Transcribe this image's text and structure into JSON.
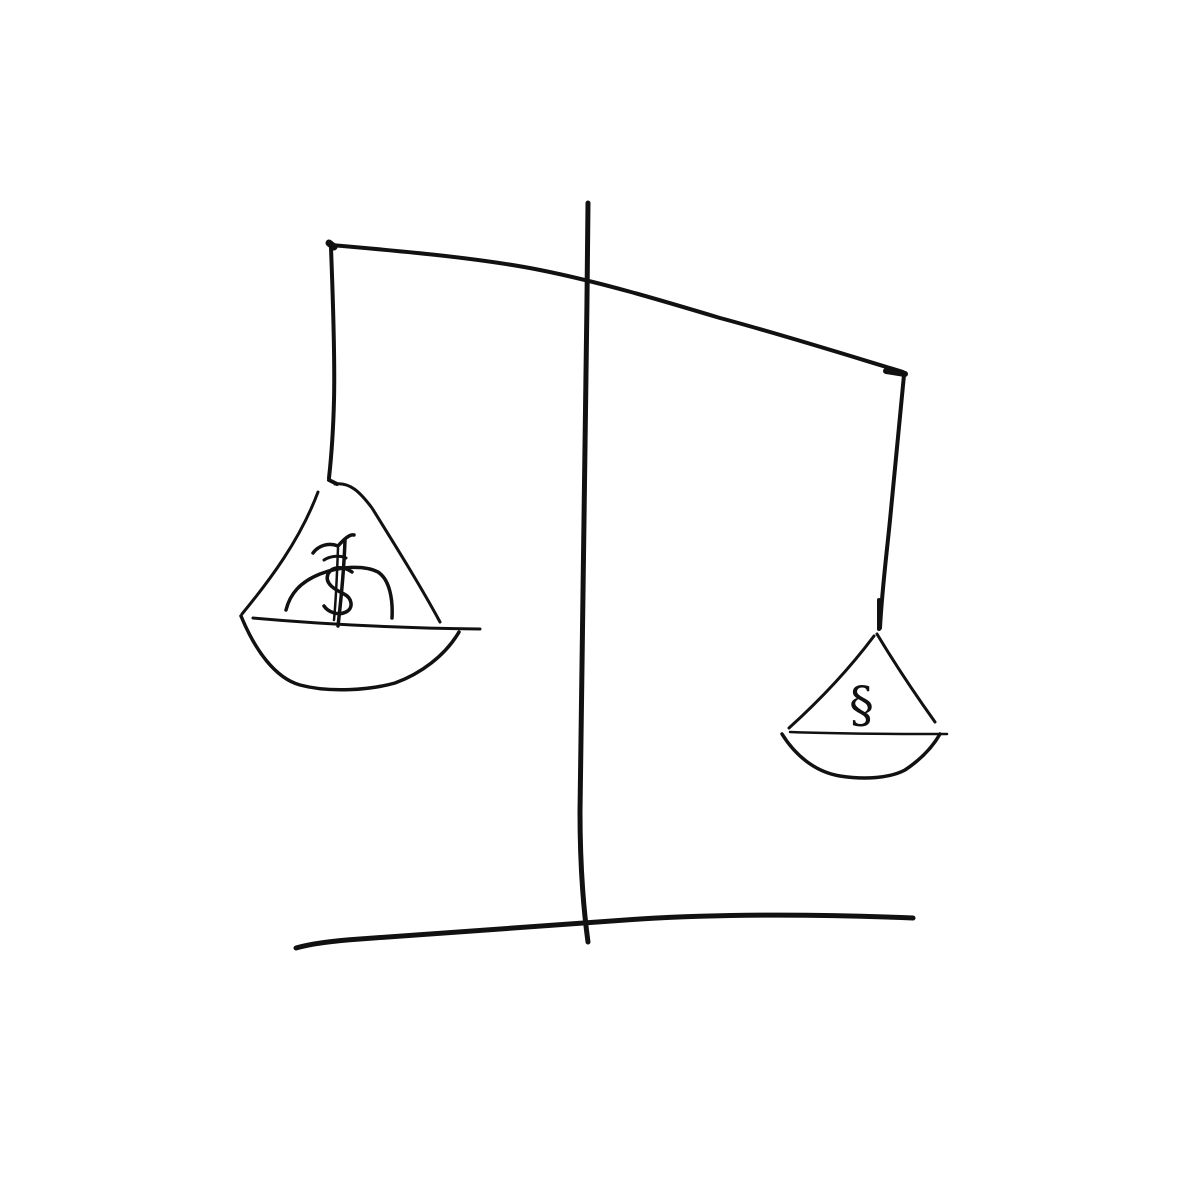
{
  "colors": {
    "background": "#ffffff",
    "ink": "#111111"
  },
  "scale": {
    "tilt": "left-pan-lower",
    "left_pan": {
      "contents_icon": "money-bag-icon",
      "symbol": "$"
    },
    "right_pan": {
      "contents_icon": "section-sign-icon",
      "symbol": "§"
    }
  }
}
